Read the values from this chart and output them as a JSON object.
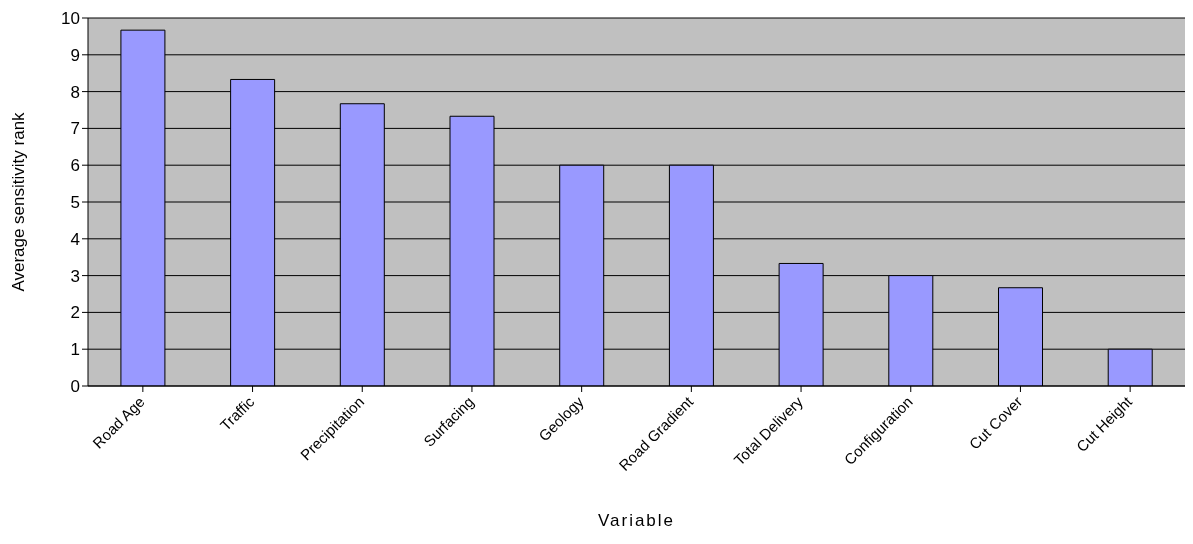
{
  "chart_data": {
    "type": "bar",
    "xlabel": "Variable",
    "ylabel": "Average sensitivity rank",
    "categories": [
      "Road Age",
      "Traffic",
      "Precipitation",
      "Surfacing",
      "Geology",
      "Road Gradient",
      "Total Delivery",
      "Configuration",
      "Cut Cover",
      "Cut Height"
    ],
    "values": [
      9.67,
      8.33,
      7.67,
      7.33,
      6,
      6,
      3.33,
      3,
      2.67,
      1
    ],
    "color": "#9999ff",
    "ylim": [
      0,
      10
    ],
    "yticks": [
      0,
      1,
      2,
      3,
      4,
      5,
      6,
      7,
      8,
      9,
      10
    ],
    "grid": "y"
  }
}
